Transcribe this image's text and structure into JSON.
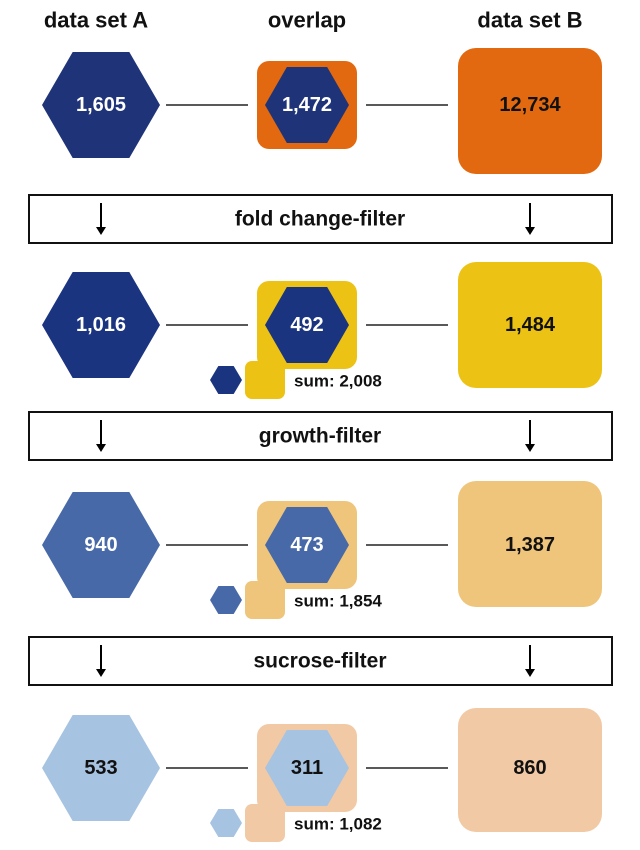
{
  "headers": {
    "a": "data set A",
    "overlap": "overlap",
    "b": "data set B"
  },
  "stages": [
    {
      "a": "1,605",
      "overlap": "1,472",
      "b": "12,734",
      "sum": "",
      "colors": {
        "hex": "#1f3478",
        "sq": "#e2690f",
        "hex_text": "#ffffff",
        "sq_text": "#111111"
      }
    },
    {
      "a": "1,016",
      "overlap": "492",
      "b": "1,484",
      "sum": "sum: 2,008",
      "colors": {
        "hex": "#1a3480",
        "sq": "#ecc215",
        "hex_text": "#ffffff",
        "sq_text": "#111111"
      }
    },
    {
      "a": "940",
      "overlap": "473",
      "b": "1,387",
      "sum": "sum: 1,854",
      "colors": {
        "hex": "#4869a8",
        "sq": "#eec57b",
        "hex_text": "#ffffff",
        "sq_text": "#111111"
      }
    },
    {
      "a": "533",
      "overlap": "311",
      "b": "860",
      "sum": "sum: 1,082",
      "colors": {
        "hex": "#a6c3e1",
        "sq": "#f2c9a5",
        "hex_text": "#111111",
        "sq_text": "#111111"
      }
    }
  ],
  "filters": [
    "fold change-filter",
    "growth-filter",
    "sucrose-filter"
  ]
}
